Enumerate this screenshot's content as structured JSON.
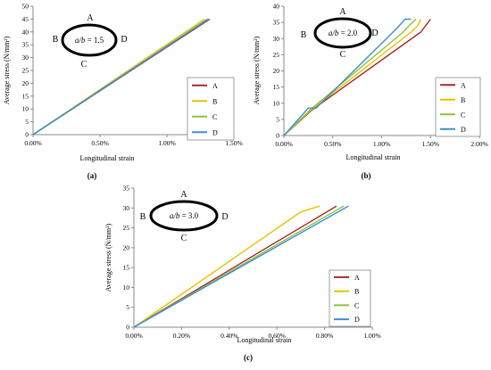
{
  "chart_data": [
    {
      "panel_label": "(a)",
      "type": "line",
      "xlabel": "Longitudinal strain",
      "ylabel": "Average stress (N/mm²)",
      "xlim": [
        0,
        0.015
      ],
      "ylim": [
        0,
        50
      ],
      "x_ticks": [
        0,
        0.005,
        0.01,
        0.015
      ],
      "x_tick_labels": [
        "0.00%",
        "0.50%",
        "1.00%",
        "1.50%"
      ],
      "y_ticks": [
        0,
        5,
        10,
        15,
        20,
        25,
        30,
        35,
        40,
        45,
        50
      ],
      "y_tick_labels": [
        "0",
        "5",
        "10",
        "15",
        "20",
        "25",
        "30",
        "35",
        "40",
        "45",
        "50"
      ],
      "grid": false,
      "legend_position": "bottom-right",
      "annotation": {
        "ellipse_label_prefix": "a/b",
        "ellipse_label_value": " = 1.5",
        "edge_labels": {
          "top": "A",
          "left": "B",
          "right": "D",
          "bottom": "C"
        }
      },
      "series": [
        {
          "name": "A",
          "color": "#a52a2a",
          "x": [
            0,
            0.0132
          ],
          "y": [
            0,
            45
          ]
        },
        {
          "name": "B",
          "color": "#e8c200",
          "x": [
            0,
            0.0128
          ],
          "y": [
            0,
            45
          ]
        },
        {
          "name": "C",
          "color": "#90c23d",
          "x": [
            0,
            0.013
          ],
          "y": [
            0,
            45
          ]
        },
        {
          "name": "D",
          "color": "#3a8fd6",
          "x": [
            0,
            0.0131
          ],
          "y": [
            0,
            45
          ]
        }
      ]
    },
    {
      "panel_label": "(b)",
      "type": "line",
      "xlabel": "Longitudinal strain",
      "ylabel": "Average stress (N/mm²)",
      "xlim": [
        0,
        0.02
      ],
      "ylim": [
        0,
        40
      ],
      "x_ticks": [
        0,
        0.005,
        0.01,
        0.015,
        0.02
      ],
      "x_tick_labels": [
        "0.00%",
        "0.50%",
        "1.00%",
        "1.50%",
        "2.00%"
      ],
      "y_ticks": [
        0,
        5,
        10,
        15,
        20,
        25,
        30,
        35,
        40
      ],
      "y_tick_labels": [
        "0",
        "5",
        "10",
        "15",
        "20",
        "25",
        "30",
        "35",
        "40"
      ],
      "grid": false,
      "legend_position": "bottom-right",
      "annotation": {
        "ellipse_label_prefix": "a/b",
        "ellipse_label_value": " = 2.0",
        "edge_labels": {
          "top": "A",
          "left": "B",
          "right": "D",
          "bottom": "C"
        }
      },
      "series": [
        {
          "name": "A",
          "color": "#a52a2a",
          "x": [
            0,
            0.0029,
            0.014,
            0.0145,
            0.015
          ],
          "y": [
            0,
            8,
            32,
            34,
            36
          ]
        },
        {
          "name": "B",
          "color": "#e8c200",
          "x": [
            0,
            0.0028,
            0.013,
            0.0137,
            0.014
          ],
          "y": [
            0,
            8,
            32,
            34,
            36
          ]
        },
        {
          "name": "C",
          "color": "#90c23d",
          "x": [
            0,
            0.0027,
            0.0122,
            0.0128,
            0.0135
          ],
          "y": [
            0,
            8,
            32,
            34,
            36
          ]
        },
        {
          "name": "D",
          "color": "#3a8fd6",
          "x": [
            0,
            0.0025,
            0.0033,
            0.0115,
            0.0124,
            0.013
          ],
          "y": [
            0,
            8.5,
            8.5,
            33,
            36,
            36
          ]
        }
      ]
    },
    {
      "panel_label": "(c)",
      "type": "line",
      "xlabel": "Longitudinal strain",
      "ylabel": "Average stress (N/mm²)",
      "xlim": [
        0,
        0.01
      ],
      "ylim": [
        0,
        35
      ],
      "x_ticks": [
        0,
        0.002,
        0.004,
        0.006,
        0.008,
        0.01
      ],
      "x_tick_labels": [
        "0.00%",
        "0.20%",
        "0.40%",
        "0.60%",
        "0.80%",
        "1.00%"
      ],
      "y_ticks": [
        0,
        5,
        10,
        15,
        20,
        25,
        30,
        35
      ],
      "y_tick_labels": [
        "0",
        "5",
        "10",
        "15",
        "20",
        "25",
        "30",
        "35"
      ],
      "grid": false,
      "legend_position": "bottom-right",
      "annotation": {
        "ellipse_label_prefix": "a/b",
        "ellipse_label_value": " = 3.0",
        "edge_labels": {
          "top": "A",
          "left": "B",
          "right": "D",
          "bottom": "C"
        }
      },
      "series": [
        {
          "name": "A",
          "color": "#a52a2a",
          "x": [
            0,
            0.0085
          ],
          "y": [
            0,
            30.5
          ]
        },
        {
          "name": "B",
          "color": "#e8c200",
          "x": [
            0,
            0.007,
            0.0078
          ],
          "y": [
            0,
            29,
            30.5
          ]
        },
        {
          "name": "C",
          "color": "#90c23d",
          "x": [
            0,
            0.0088
          ],
          "y": [
            0,
            30.5
          ]
        },
        {
          "name": "D",
          "color": "#3a8fd6",
          "x": [
            0,
            0.009
          ],
          "y": [
            0,
            30.5
          ]
        }
      ]
    }
  ]
}
